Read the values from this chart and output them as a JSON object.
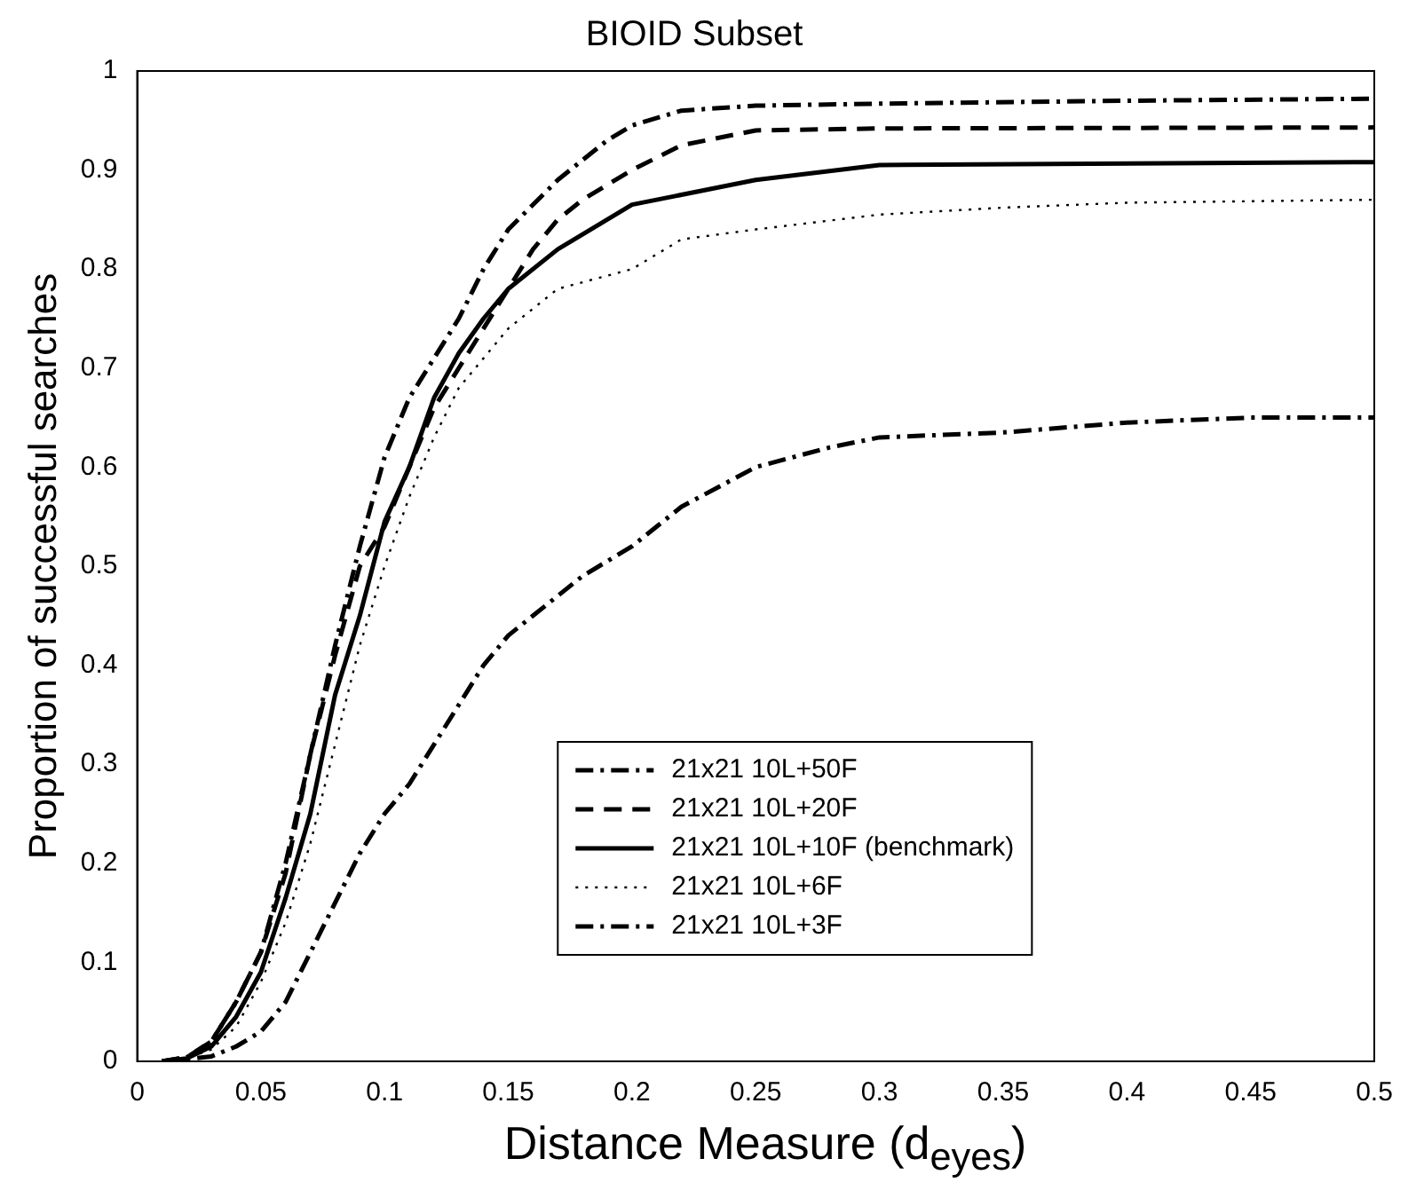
{
  "chart_data": {
    "type": "line",
    "title": "BIOID Subset",
    "xlabel": "Distance Measure (d$_{eyes}$)",
    "ylabel": "Proportion of successful searches",
    "xlim": [
      0,
      0.5
    ],
    "xticks": [
      0,
      0.05,
      0.1,
      0.15,
      0.2,
      0.25,
      0.3,
      0.35,
      0.4,
      0.45,
      0.5
    ],
    "ylim": [
      0,
      1
    ],
    "yticks": [
      0,
      0.1,
      0.2,
      0.3,
      0.4,
      0.5,
      0.6,
      0.7,
      0.8,
      0.9,
      1
    ],
    "grid": false,
    "legend": "bottom",
    "marker": "none",
    "series": [
      {
        "name": "21x21 10L+50F",
        "color": "#000000",
        "line_style": "dashdot",
        "x": [
          0.01,
          0.02,
          0.03,
          0.04,
          0.05,
          0.06,
          0.07,
          0.08,
          0.09,
          0.1,
          0.11,
          0.12,
          0.13,
          0.14,
          0.15,
          0.17,
          0.19,
          0.2,
          0.22,
          0.25,
          0.3,
          0.4,
          0.5
        ],
        "values": [
          0,
          0.004,
          0.02,
          0.06,
          0.11,
          0.2,
          0.31,
          0.42,
          0.52,
          0.61,
          0.67,
          0.71,
          0.75,
          0.8,
          0.84,
          0.89,
          0.93,
          0.945,
          0.96,
          0.965,
          0.967,
          0.97,
          0.972
        ]
      },
      {
        "name": "21x21 10L+20F",
        "color": "#000000",
        "line_style": "dashed",
        "x": [
          0.01,
          0.02,
          0.03,
          0.04,
          0.05,
          0.06,
          0.07,
          0.08,
          0.09,
          0.1,
          0.11,
          0.12,
          0.13,
          0.14,
          0.15,
          0.16,
          0.17,
          0.18,
          0.2,
          0.22,
          0.25,
          0.3,
          0.5
        ],
        "values": [
          0,
          0.004,
          0.02,
          0.06,
          0.11,
          0.19,
          0.31,
          0.41,
          0.5,
          0.54,
          0.6,
          0.66,
          0.7,
          0.74,
          0.78,
          0.82,
          0.85,
          0.87,
          0.9,
          0.925,
          0.94,
          0.942,
          0.943
        ]
      },
      {
        "name": "21x21 10L+10F (benchmark)",
        "color": "#000000",
        "line_style": "solid",
        "x": [
          0.01,
          0.02,
          0.03,
          0.04,
          0.05,
          0.06,
          0.07,
          0.08,
          0.09,
          0.1,
          0.11,
          0.12,
          0.13,
          0.14,
          0.15,
          0.17,
          0.2,
          0.25,
          0.3,
          0.5
        ],
        "values": [
          0,
          0.003,
          0.015,
          0.045,
          0.09,
          0.165,
          0.25,
          0.37,
          0.45,
          0.545,
          0.6,
          0.67,
          0.715,
          0.75,
          0.78,
          0.82,
          0.865,
          0.89,
          0.905,
          0.908
        ]
      },
      {
        "name": "21x21 10L+6F",
        "color": "#000000",
        "line_style": "dotted",
        "x": [
          0.01,
          0.02,
          0.03,
          0.04,
          0.05,
          0.06,
          0.07,
          0.08,
          0.09,
          0.1,
          0.11,
          0.12,
          0.13,
          0.14,
          0.15,
          0.17,
          0.2,
          0.22,
          0.25,
          0.3,
          0.35,
          0.4,
          0.5
        ],
        "values": [
          0,
          0.003,
          0.012,
          0.035,
          0.08,
          0.14,
          0.22,
          0.32,
          0.42,
          0.5,
          0.57,
          0.63,
          0.68,
          0.71,
          0.74,
          0.78,
          0.8,
          0.83,
          0.84,
          0.855,
          0.862,
          0.867,
          0.87
        ]
      },
      {
        "name": "21x21 10L+3F",
        "color": "#000000",
        "line_style": "dashdot",
        "x": [
          0.01,
          0.02,
          0.03,
          0.04,
          0.05,
          0.06,
          0.07,
          0.08,
          0.09,
          0.1,
          0.11,
          0.12,
          0.13,
          0.14,
          0.15,
          0.16,
          0.17,
          0.18,
          0.2,
          0.22,
          0.25,
          0.28,
          0.3,
          0.35,
          0.4,
          0.45,
          0.5
        ],
        "values": [
          0,
          0.002,
          0.005,
          0.015,
          0.03,
          0.06,
          0.11,
          0.16,
          0.21,
          0.25,
          0.28,
          0.32,
          0.36,
          0.4,
          0.43,
          0.45,
          0.47,
          0.49,
          0.52,
          0.56,
          0.6,
          0.62,
          0.63,
          0.635,
          0.645,
          0.65,
          0.65
        ]
      }
    ]
  }
}
